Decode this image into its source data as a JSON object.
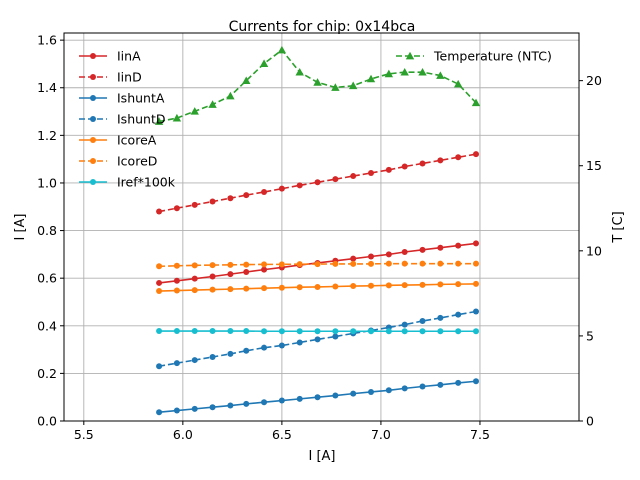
{
  "chart_data": {
    "type": "line",
    "title": "Currents for chip: 0x14bca",
    "xlabel": "I [A]",
    "ylabel": "I [A]",
    "y2label": "T [C]",
    "xlim": [
      5.4,
      8.0
    ],
    "ylim": [
      0.0,
      1.63
    ],
    "y2lim": [
      0,
      22.8
    ],
    "xticks": [
      5.5,
      6.0,
      6.5,
      7.0,
      7.5
    ],
    "xtick_labels": [
      "5.5",
      "6.0",
      "6.5",
      "7.0",
      "7.5"
    ],
    "yticks": [
      0.0,
      0.2,
      0.4,
      0.6,
      0.8,
      1.0,
      1.2,
      1.4,
      1.6
    ],
    "ytick_labels": [
      "0.0",
      "0.2",
      "0.4",
      "0.6",
      "0.8",
      "1.0",
      "1.2",
      "1.4",
      "1.6"
    ],
    "y2ticks": [
      0,
      5,
      10,
      15,
      20
    ],
    "y2tick_labels": [
      "0",
      "5",
      "10",
      "15",
      "20"
    ],
    "grid": true,
    "x": [
      5.88,
      5.97,
      6.06,
      6.15,
      6.24,
      6.32,
      6.41,
      6.5,
      6.59,
      6.68,
      6.77,
      6.86,
      6.95,
      7.04,
      7.12,
      7.21,
      7.3,
      7.39,
      7.48
    ],
    "series": [
      {
        "name": "IinA",
        "axis": "left",
        "color": "#d62728",
        "dashed": false,
        "marker": "circle",
        "values": [
          0.58,
          0.589,
          0.598,
          0.607,
          0.617,
          0.626,
          0.636,
          0.645,
          0.655,
          0.664,
          0.673,
          0.682,
          0.691,
          0.7,
          0.71,
          0.719,
          0.728,
          0.737,
          0.746
        ]
      },
      {
        "name": "IinD",
        "axis": "left",
        "color": "#d62728",
        "dashed": true,
        "marker": "circle",
        "values": [
          0.88,
          0.894,
          0.908,
          0.922,
          0.936,
          0.949,
          0.962,
          0.976,
          0.99,
          1.003,
          1.016,
          1.029,
          1.042,
          1.055,
          1.069,
          1.082,
          1.095,
          1.108,
          1.121
        ]
      },
      {
        "name": "IshuntA",
        "axis": "left",
        "color": "#1f77b4",
        "dashed": false,
        "marker": "circle",
        "values": [
          0.037,
          0.044,
          0.051,
          0.058,
          0.065,
          0.072,
          0.079,
          0.086,
          0.093,
          0.1,
          0.107,
          0.115,
          0.122,
          0.129,
          0.137,
          0.145,
          0.152,
          0.16,
          0.167
        ]
      },
      {
        "name": "IshuntD",
        "axis": "left",
        "color": "#1f77b4",
        "dashed": true,
        "marker": "circle",
        "values": [
          0.23,
          0.243,
          0.256,
          0.269,
          0.282,
          0.295,
          0.308,
          0.317,
          0.33,
          0.343,
          0.355,
          0.368,
          0.38,
          0.393,
          0.405,
          0.42,
          0.433,
          0.447,
          0.46
        ]
      },
      {
        "name": "IcoreA",
        "axis": "left",
        "color": "#ff7f0e",
        "dashed": false,
        "marker": "circle",
        "values": [
          0.546,
          0.548,
          0.55,
          0.552,
          0.554,
          0.556,
          0.558,
          0.56,
          0.562,
          0.563,
          0.565,
          0.567,
          0.568,
          0.57,
          0.571,
          0.572,
          0.574,
          0.575,
          0.576
        ]
      },
      {
        "name": "IcoreD",
        "axis": "left",
        "color": "#ff7f0e",
        "dashed": true,
        "marker": "circle",
        "values": [
          0.65,
          0.652,
          0.654,
          0.655,
          0.656,
          0.657,
          0.658,
          0.658,
          0.659,
          0.659,
          0.66,
          0.66,
          0.66,
          0.661,
          0.661,
          0.661,
          0.661,
          0.661,
          0.661
        ]
      },
      {
        "name": "Iref*100k",
        "axis": "left",
        "color": "#17becf",
        "dashed": false,
        "marker": "circle",
        "values": [
          0.378,
          0.378,
          0.378,
          0.378,
          0.378,
          0.378,
          0.377,
          0.377,
          0.377,
          0.377,
          0.377,
          0.377,
          0.377,
          0.377,
          0.377,
          0.377,
          0.377,
          0.377,
          0.377
        ]
      },
      {
        "name": "Temperature (NTC)",
        "axis": "right",
        "color": "#2ca02c",
        "dashed": true,
        "marker": "triangle",
        "values": [
          17.6,
          17.8,
          18.2,
          18.6,
          19.1,
          20.0,
          21.0,
          21.8,
          20.5,
          19.9,
          19.6,
          19.7,
          20.1,
          20.4,
          20.5,
          20.5,
          20.3,
          19.8,
          18.7
        ]
      }
    ],
    "legend_left": [
      "IinA",
      "IinD",
      "IshuntA",
      "IshuntD",
      "IcoreA",
      "IcoreD",
      "Iref*100k"
    ],
    "legend_right": [
      "Temperature (NTC)"
    ]
  }
}
